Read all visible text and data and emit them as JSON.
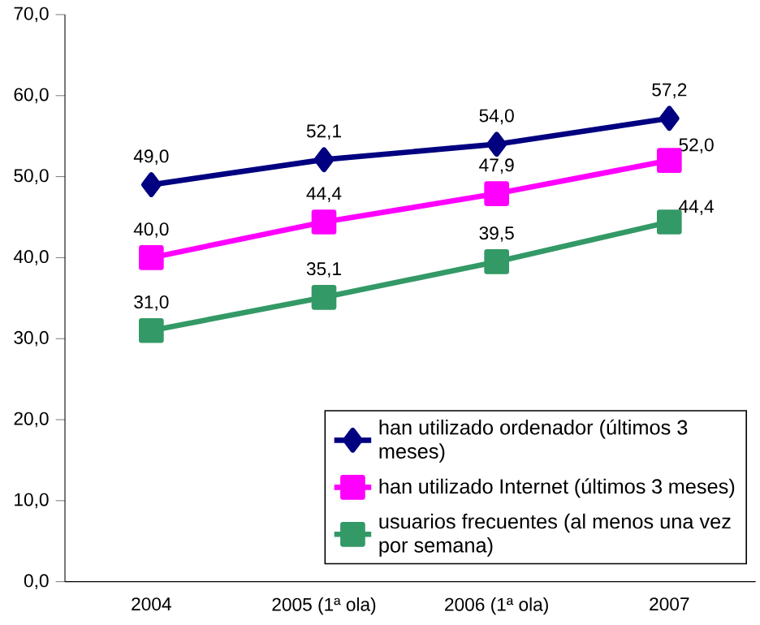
{
  "chart_data": {
    "type": "line",
    "categories": [
      "2004",
      "2005 (1ª ola)",
      "2006 (1ª ola)",
      "2007"
    ],
    "ylim": [
      0,
      70
    ],
    "yticks": [
      {
        "value": 0,
        "label": "0,0"
      },
      {
        "value": 10,
        "label": "10,0"
      },
      {
        "value": 20,
        "label": "20,0"
      },
      {
        "value": 30,
        "label": "30,0"
      },
      {
        "value": 40,
        "label": "40,0"
      },
      {
        "value": 50,
        "label": "50,0"
      },
      {
        "value": 60,
        "label": "60,0"
      },
      {
        "value": 70,
        "label": "70,0"
      }
    ],
    "legend": "bottom right",
    "grid": false,
    "series": [
      {
        "name": "han utilizado ordenador (últimos 3 meses)",
        "color": "#000080",
        "marker": "diamond",
        "values": [
          49.0,
          52.1,
          54.0,
          57.2
        ],
        "value_labels": [
          "49,0",
          "52,1",
          "54,0",
          "57,2"
        ]
      },
      {
        "name": "han utilizado Internet (últimos 3 meses)",
        "color": "#ff00ff",
        "marker": "square",
        "values": [
          40.0,
          44.4,
          47.9,
          52.0
        ],
        "value_labels": [
          "40,0",
          "44,4",
          "47,9",
          "52,0"
        ]
      },
      {
        "name": "usuarios frecuentes (al menos una vez por semana)",
        "color": "#339966",
        "marker": "square",
        "values": [
          31.0,
          35.1,
          39.5,
          44.4
        ],
        "value_labels": [
          "31,0",
          "35,1",
          "39,5",
          "44,4"
        ]
      }
    ]
  }
}
